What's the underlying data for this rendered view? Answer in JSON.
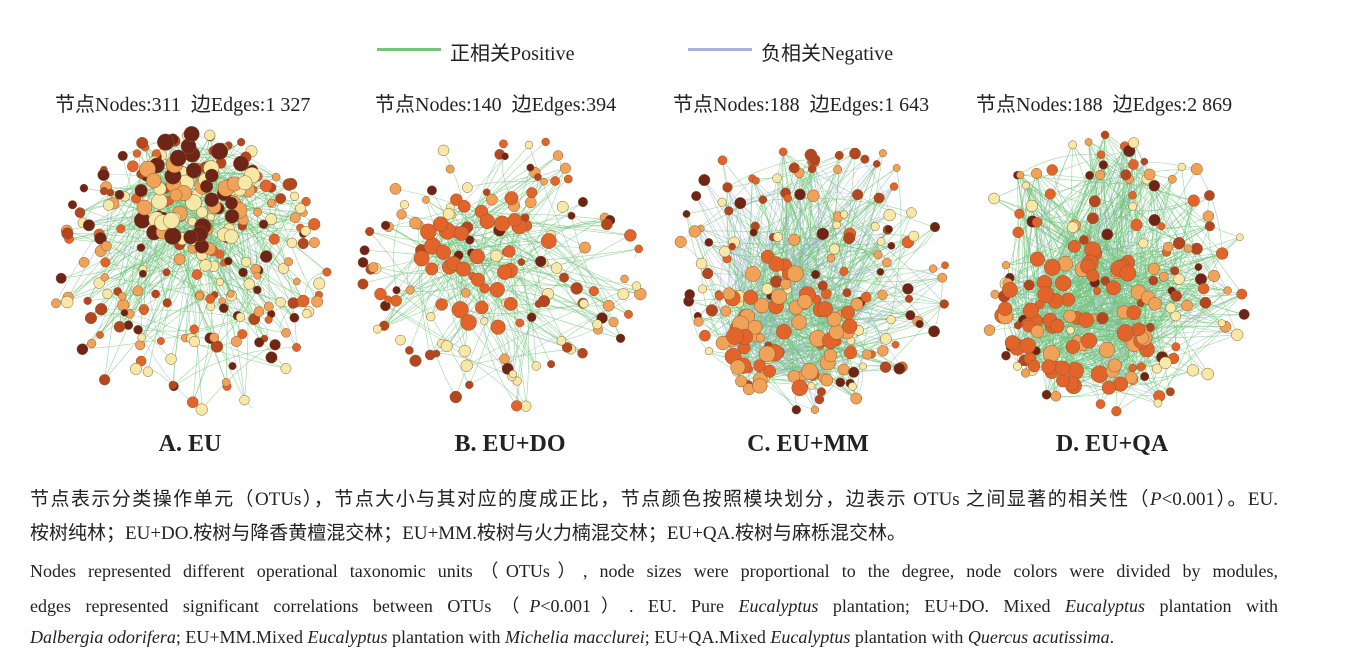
{
  "legend": [
    {
      "label": "正相关Positive",
      "color": "#72c47a"
    },
    {
      "label": "负相关Negative",
      "color": "#a8b2dc"
    }
  ],
  "panels": [
    {
      "stats": "节点Nodes:311  边Edges:1 327",
      "label": "A. EU"
    },
    {
      "stats": "节点Nodes:140  边Edges:394",
      "label": "B. EU+DO"
    },
    {
      "stats": "节点Nodes:188  边Edges:1 643",
      "label": "C. EU+MM"
    },
    {
      "stats": "节点Nodes:188  边Edges:2 869",
      "label": "D. EU+QA"
    }
  ],
  "caption": {
    "zh": [
      [
        "节点表示分类操作单元（OTUs），节点大小与其对应的度成正比，节点颜色按照模块划分，边表示 OTUs 之间显著的相关性（",
        "P",
        "<0.001）。EU."
      ],
      [
        "桉树纯林；EU+DO.桉树与降香黄檀混交林；EU+MM.桉树与火力楠混交林；EU+QA.桉树与麻栎混交林。"
      ]
    ],
    "en": [
      [
        "Nodes represented different operational taxonomic units（OTUs）, node sizes were proportional to the degree, node colors were divided by modules,"
      ],
      [
        "edges represented significant correlations between OTUs（",
        "P",
        "<0.001）. EU. Pure ",
        "Eucalyptus",
        " plantation; EU+DO. Mixed ",
        "Eucalyptus",
        " plantation with"
      ],
      [
        "Dalbergia odorifera",
        "; EU+MM.Mixed ",
        "Eucalyptus",
        " plantation with ",
        "Michelia macclurei",
        "; EU+QA.Mixed ",
        "Eucalyptus",
        " plantation with ",
        "Quercus acutissima",
        "."
      ]
    ]
  }
}
